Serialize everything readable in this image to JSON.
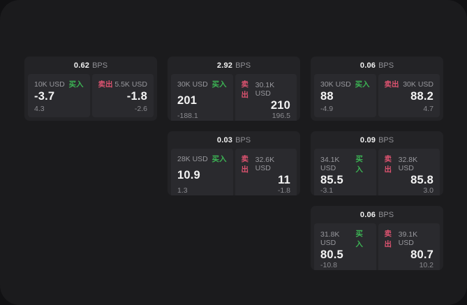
{
  "labels": {
    "bps_unit": "BPS",
    "buy": "买入",
    "sell": "卖出"
  },
  "colors": {
    "buy_accent": "#3cb454",
    "sell_accent": "#dd5370",
    "panel_bg": "#1b1b1d",
    "card_bg": "#232326",
    "tile_bg": "#2a2a2e"
  },
  "cards": [
    {
      "bps": "0.62",
      "buy": {
        "amount": "10K USD",
        "value": "-3.7",
        "delta": "4.3"
      },
      "sell": {
        "amount": "5.5K USD",
        "value": "-1.8",
        "delta": "-2.6"
      }
    },
    {
      "bps": "2.92",
      "buy": {
        "amount": "30K USD",
        "value": "201",
        "delta": "-188.1"
      },
      "sell": {
        "amount": "30.1K USD",
        "value": "210",
        "delta": "196.5"
      }
    },
    {
      "bps": "0.06",
      "buy": {
        "amount": "30K USD",
        "value": "88",
        "delta": "-4.9"
      },
      "sell": {
        "amount": "30K USD",
        "value": "88.2",
        "delta": "4.7"
      }
    },
    {
      "bps": "0.03",
      "buy": {
        "amount": "28K USD",
        "value": "10.9",
        "delta": "1.3"
      },
      "sell": {
        "amount": "32.6K USD",
        "value": "11",
        "delta": "-1.8"
      }
    },
    {
      "bps": "0.09",
      "buy": {
        "amount": "34.1K USD",
        "value": "85.5",
        "delta": "-3.1"
      },
      "sell": {
        "amount": "32.8K USD",
        "value": "85.8",
        "delta": "3.0"
      }
    },
    {
      "bps": "0.06",
      "buy": {
        "amount": "31.8K USD",
        "value": "80.5",
        "delta": "-10.8"
      },
      "sell": {
        "amount": "39.1K USD",
        "value": "80.7",
        "delta": "10.2"
      }
    }
  ]
}
